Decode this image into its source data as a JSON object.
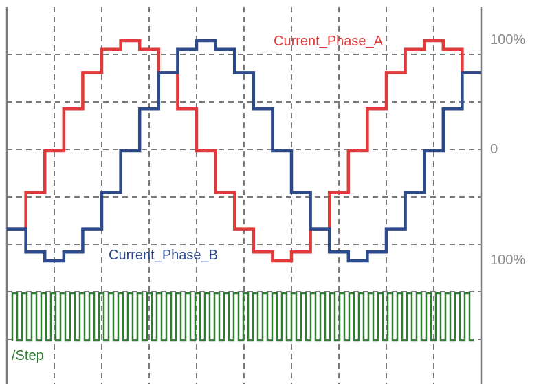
{
  "chart_data": {
    "type": "line",
    "grid": true,
    "x": [
      0,
      1,
      2,
      3,
      4,
      5,
      6,
      7,
      8,
      9,
      10,
      11,
      12,
      13,
      14,
      15,
      16,
      17,
      18,
      19,
      20,
      21,
      22,
      23,
      24
    ],
    "ylim": [
      -1.2,
      1.2
    ],
    "y_tick_labels": [
      {
        "value": 1.0,
        "label": "100%"
      },
      {
        "value": 0.0,
        "label": "0"
      },
      {
        "value": -1.0,
        "label": "100%"
      }
    ],
    "series": [
      {
        "name": "Current_Phase_A",
        "color": "#e03a3a",
        "values": [
          -0.71,
          -0.38,
          0.0,
          0.38,
          0.71,
          0.92,
          1.0,
          0.92,
          0.71,
          0.38,
          0.0,
          -0.38,
          -0.71,
          -0.92,
          -1.0,
          -0.92,
          -0.71,
          -0.38,
          0.0,
          0.38,
          0.71,
          0.92,
          1.0,
          0.92,
          0.71
        ]
      },
      {
        "name": "Current_Phase_B",
        "color": "#2d4a8c",
        "values": [
          -0.71,
          -0.92,
          -1.0,
          -0.92,
          -0.71,
          -0.38,
          0.0,
          0.38,
          0.71,
          0.92,
          1.0,
          0.92,
          0.71,
          0.38,
          0.0,
          -0.38,
          -0.71,
          -0.92,
          -1.0,
          -0.92,
          -0.71,
          -0.38,
          0.0,
          0.38,
          0.71
        ]
      }
    ],
    "step_signal": {
      "name": "/Step",
      "color": "#2e7d32",
      "pulses": 48
    }
  }
}
